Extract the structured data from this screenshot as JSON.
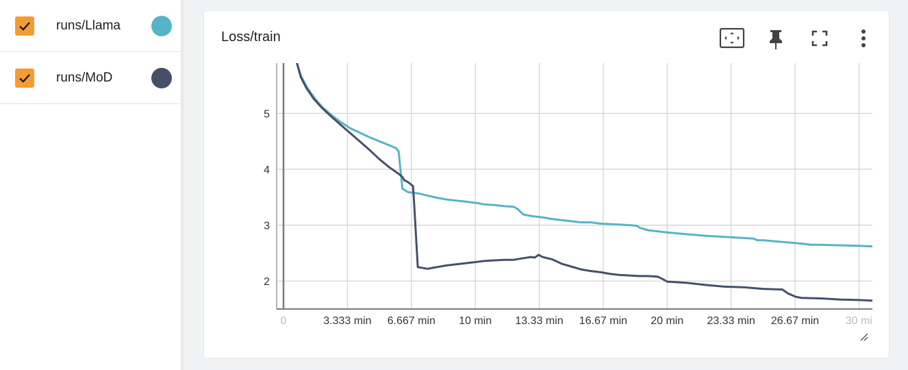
{
  "runs": [
    {
      "label": "runs/Llama",
      "checked": true,
      "color": "#55b4c8"
    },
    {
      "label": "runs/MoD",
      "checked": true,
      "color": "#44506a"
    }
  ],
  "card": {
    "title": "Loss/train",
    "tools": [
      "fit-domain-icon",
      "pin-icon",
      "fullscreen-icon",
      "more-vert-icon"
    ]
  },
  "chart_data": {
    "type": "line",
    "title": "Loss/train",
    "xlabel": "",
    "ylabel": "",
    "x_unit": "min",
    "xlim": [
      0,
      30.7
    ],
    "ylim": [
      1.5,
      5.9
    ],
    "x_ticks": [
      {
        "v": 0,
        "label": "0"
      },
      {
        "v": 3.333,
        "label": "3.333 min"
      },
      {
        "v": 6.667,
        "label": "6.667 min"
      },
      {
        "v": 10,
        "label": "10 min"
      },
      {
        "v": 13.333,
        "label": "13.33 min"
      },
      {
        "v": 16.667,
        "label": "16.67 min"
      },
      {
        "v": 20,
        "label": "20 min"
      },
      {
        "v": 23.333,
        "label": "23.33 min"
      },
      {
        "v": 26.667,
        "label": "26.67 min"
      },
      {
        "v": 30,
        "label": "30 mi"
      }
    ],
    "y_ticks": [
      {
        "v": 2,
        "label": "2"
      },
      {
        "v": 3,
        "label": "3"
      },
      {
        "v": 4,
        "label": "4"
      },
      {
        "v": 5,
        "label": "5"
      }
    ],
    "grid": true,
    "series": [
      {
        "name": "runs/Llama",
        "color": "#55b4c8",
        "x": [
          0.7,
          0.9,
          1.2,
          1.6,
          2.0,
          2.5,
          3.0,
          3.5,
          4.0,
          4.5,
          5.0,
          5.5,
          5.85,
          6.0,
          6.2,
          6.5,
          7.0,
          7.5,
          8.0,
          8.5,
          9.0,
          9.5,
          10.0,
          10.5,
          11.0,
          11.5,
          12.0,
          12.2,
          12.5,
          13.0,
          13.5,
          14.0,
          14.5,
          15.0,
          15.5,
          16.0,
          16.5,
          17.0,
          17.5,
          18.0,
          18.4,
          18.6,
          19.0,
          19.5,
          20.0,
          21.0,
          22.0,
          23.0,
          24.0,
          24.5,
          24.7,
          25.0,
          26.0,
          27.0,
          27.5,
          28.0,
          29.0,
          30.0,
          30.7
        ],
        "y": [
          5.9,
          5.68,
          5.48,
          5.28,
          5.12,
          4.97,
          4.84,
          4.73,
          4.65,
          4.57,
          4.5,
          4.43,
          4.38,
          4.32,
          3.65,
          3.59,
          3.57,
          3.53,
          3.49,
          3.46,
          3.44,
          3.42,
          3.4,
          3.37,
          3.36,
          3.34,
          3.33,
          3.29,
          3.19,
          3.16,
          3.14,
          3.11,
          3.09,
          3.07,
          3.05,
          3.05,
          3.03,
          3.02,
          3.01,
          3.0,
          2.99,
          2.95,
          2.91,
          2.89,
          2.87,
          2.84,
          2.81,
          2.79,
          2.77,
          2.76,
          2.73,
          2.73,
          2.7,
          2.67,
          2.65,
          2.65,
          2.64,
          2.63,
          2.62
        ]
      },
      {
        "name": "runs/MoD",
        "color": "#44506a",
        "x": [
          0.7,
          0.9,
          1.2,
          1.6,
          2.0,
          2.5,
          3.0,
          3.5,
          4.0,
          4.5,
          5.0,
          5.5,
          6.0,
          6.2,
          6.3,
          6.45,
          6.6,
          6.75,
          6.8,
          7.0,
          7.5,
          8.0,
          8.5,
          9.0,
          9.5,
          10.0,
          10.5,
          11.0,
          11.5,
          12.0,
          12.5,
          12.9,
          13.1,
          13.3,
          13.5,
          14.0,
          14.5,
          15.0,
          15.5,
          16.0,
          16.5,
          17.0,
          17.5,
          18.0,
          18.5,
          19.0,
          19.5,
          19.8,
          20.0,
          21.0,
          22.0,
          23.0,
          24.0,
          25.0,
          25.8,
          26.0,
          26.3,
          26.7,
          27.0,
          28.0,
          29.0,
          30.0,
          30.7
        ],
        "y": [
          5.9,
          5.65,
          5.45,
          5.25,
          5.1,
          4.94,
          4.79,
          4.64,
          4.49,
          4.34,
          4.18,
          4.04,
          3.92,
          3.86,
          3.8,
          3.78,
          3.74,
          3.7,
          3.45,
          2.25,
          2.22,
          2.25,
          2.28,
          2.3,
          2.32,
          2.34,
          2.36,
          2.37,
          2.38,
          2.38,
          2.41,
          2.43,
          2.42,
          2.47,
          2.43,
          2.39,
          2.31,
          2.26,
          2.21,
          2.18,
          2.16,
          2.13,
          2.11,
          2.1,
          2.09,
          2.09,
          2.08,
          2.03,
          1.99,
          1.97,
          1.93,
          1.9,
          1.89,
          1.86,
          1.85,
          1.85,
          1.78,
          1.72,
          1.7,
          1.69,
          1.67,
          1.66,
          1.65
        ]
      }
    ]
  }
}
